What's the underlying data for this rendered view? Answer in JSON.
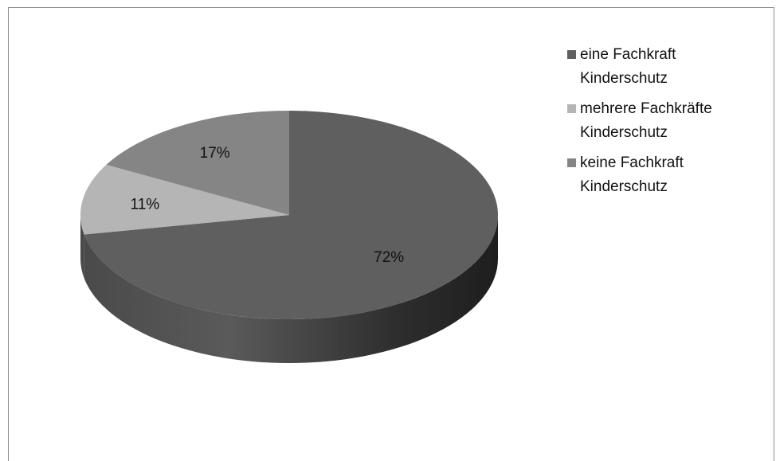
{
  "chart_data": {
    "type": "pie",
    "title": "",
    "categories": [
      "eine Fachkraft Kinderschutz",
      "mehrere Fachkräfte Kinderschutz",
      "keine Fachkraft Kinderschutz"
    ],
    "values": [
      72,
      11,
      17
    ],
    "value_labels": [
      "72%",
      "11%",
      "17%"
    ],
    "colors": [
      "#5f5f5f",
      "#b5b5b5",
      "#858585"
    ],
    "legend_position": "right",
    "style": "3d"
  }
}
